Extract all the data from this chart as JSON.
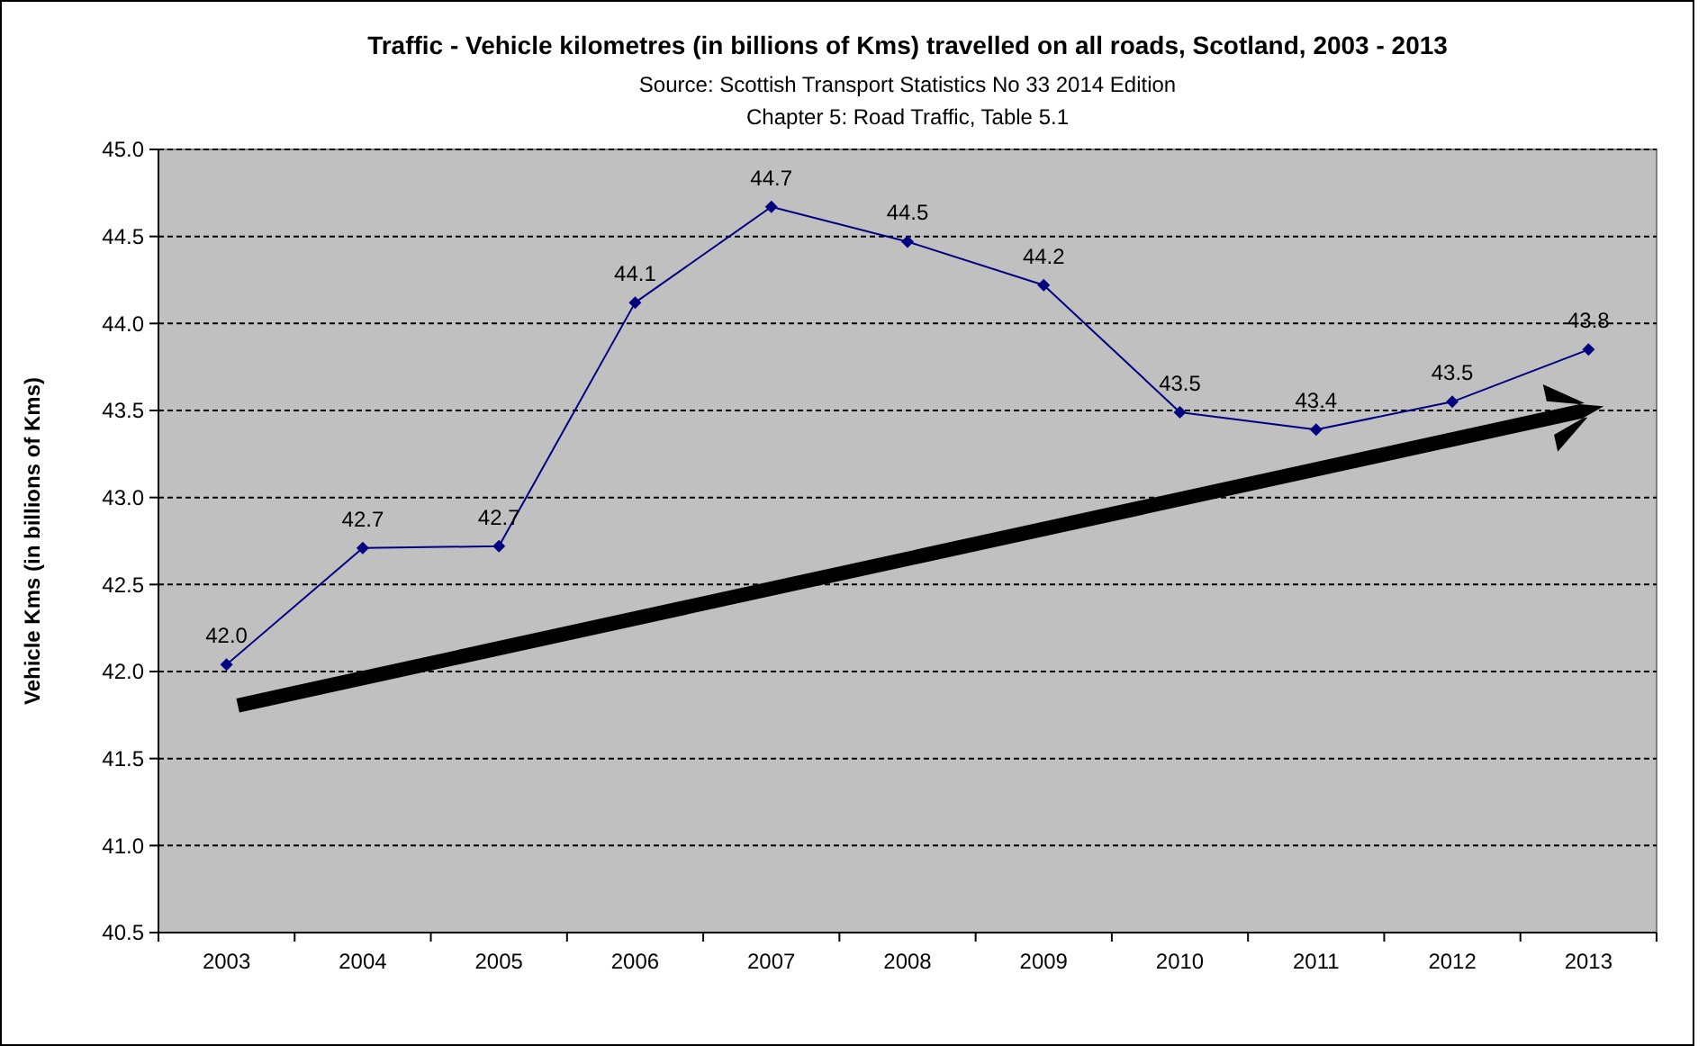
{
  "chart_data": {
    "type": "line",
    "title": "Traffic - Vehicle kilometres (in billions of Kms) travelled on all roads, Scotland, 2003 - 2013",
    "subtitle": "Source: Scottish Transport Statistics No 33 2014 Edition",
    "annotations": [
      "Chapter 5: Road Traffic, Table 5.1"
    ],
    "ylabel": "Vehicle Kms (in billions of Kms)",
    "categories": [
      "2003",
      "2004",
      "2005",
      "2006",
      "2007",
      "2008",
      "2009",
      "2010",
      "2011",
      "2012",
      "2013"
    ],
    "series": [
      {
        "color": "#000080",
        "values": [
          42.04,
          42.71,
          42.72,
          44.12,
          44.67,
          44.47,
          44.22,
          43.49,
          43.39,
          43.55,
          43.85
        ],
        "value_labels": [
          "42.0",
          "42.7",
          "42.7",
          "44.1",
          "44.7",
          "44.5",
          "44.2",
          "43.5",
          "43.4",
          "43.5",
          "43.8"
        ]
      }
    ],
    "ylim": [
      40.5,
      45.0
    ],
    "yticks": [
      {
        "value": 40.5,
        "label": "40.5"
      },
      {
        "value": 41.0,
        "label": "41.0"
      },
      {
        "value": 41.5,
        "label": "41.5"
      },
      {
        "value": 42.0,
        "label": "42.0"
      },
      {
        "value": 42.5,
        "label": "42.5"
      },
      {
        "value": 43.0,
        "label": "43.0"
      },
      {
        "value": 43.5,
        "label": "43.5"
      },
      {
        "value": 44.0,
        "label": "44.0"
      },
      {
        "value": 44.5,
        "label": "44.5"
      },
      {
        "value": 45.0,
        "label": "45.0"
      }
    ],
    "grid": "y",
    "marker": "diamond",
    "line_style": "solid"
  }
}
